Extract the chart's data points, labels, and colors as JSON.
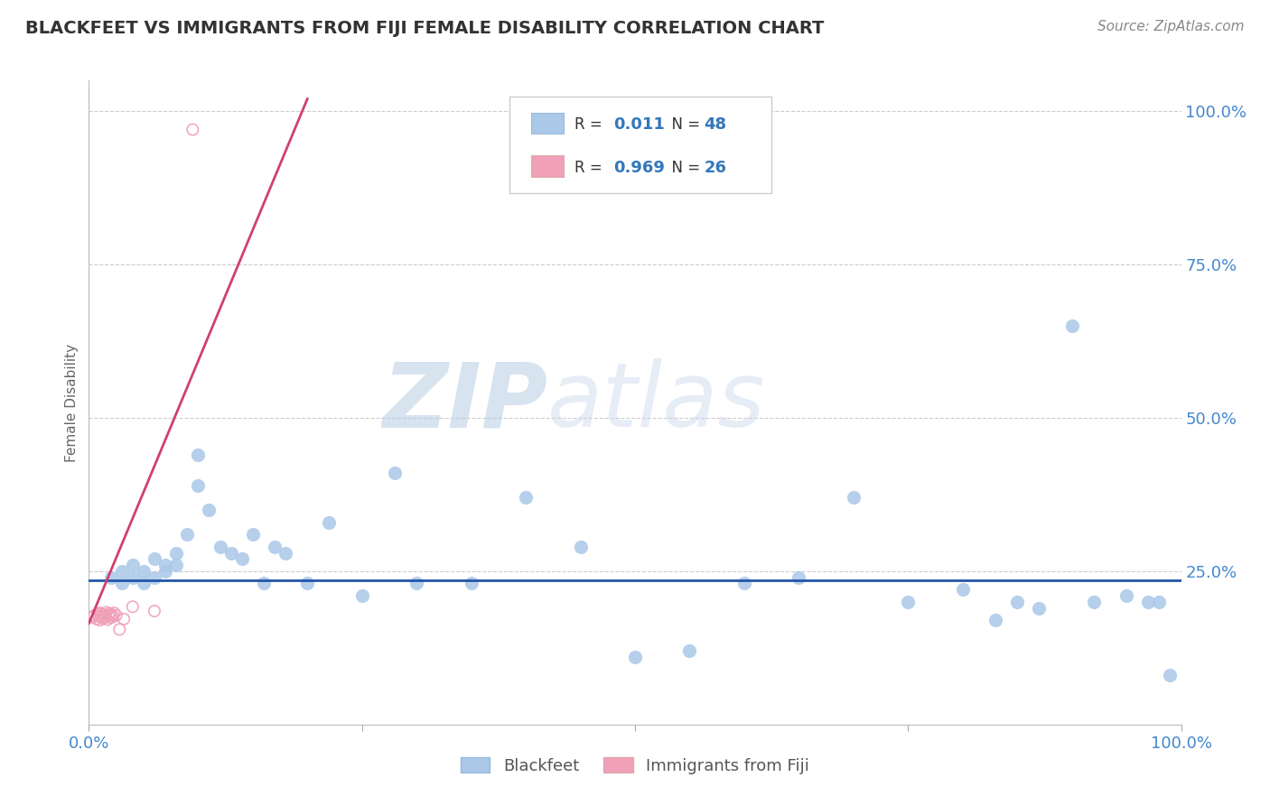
{
  "title": "BLACKFEET VS IMMIGRANTS FROM FIJI FEMALE DISABILITY CORRELATION CHART",
  "source": "Source: ZipAtlas.com",
  "ylabel": "Female Disability",
  "xlim": [
    0.0,
    1.0
  ],
  "ylim": [
    0.0,
    1.05
  ],
  "blue_R": 0.011,
  "blue_N": 48,
  "pink_R": 0.969,
  "pink_N": 26,
  "blue_color": "#aac8e8",
  "pink_color": "#f0a0b8",
  "blue_line_color": "#2255aa",
  "pink_line_color": "#d04070",
  "legend_label1": "Blackfeet",
  "legend_label2": "Immigrants from Fiji",
  "watermark_zip": "ZIP",
  "watermark_atlas": "atlas",
  "blue_dots_x": [
    0.02,
    0.03,
    0.03,
    0.04,
    0.04,
    0.05,
    0.05,
    0.06,
    0.06,
    0.07,
    0.07,
    0.08,
    0.08,
    0.09,
    0.1,
    0.1,
    0.11,
    0.12,
    0.13,
    0.14,
    0.15,
    0.16,
    0.17,
    0.18,
    0.2,
    0.22,
    0.25,
    0.28,
    0.3,
    0.35,
    0.4,
    0.45,
    0.5,
    0.55,
    0.6,
    0.65,
    0.7,
    0.75,
    0.8,
    0.83,
    0.85,
    0.87,
    0.9,
    0.92,
    0.95,
    0.97,
    0.98,
    0.99
  ],
  "blue_dots_y": [
    0.24,
    0.25,
    0.23,
    0.26,
    0.24,
    0.25,
    0.23,
    0.27,
    0.24,
    0.26,
    0.25,
    0.28,
    0.26,
    0.31,
    0.44,
    0.39,
    0.35,
    0.29,
    0.28,
    0.27,
    0.31,
    0.23,
    0.29,
    0.28,
    0.23,
    0.33,
    0.21,
    0.41,
    0.23,
    0.23,
    0.37,
    0.29,
    0.11,
    0.12,
    0.23,
    0.24,
    0.37,
    0.2,
    0.22,
    0.17,
    0.2,
    0.19,
    0.65,
    0.2,
    0.21,
    0.2,
    0.2,
    0.08
  ],
  "pink_dots_x": [
    0.003,
    0.005,
    0.007,
    0.008,
    0.009,
    0.01,
    0.01,
    0.011,
    0.012,
    0.013,
    0.014,
    0.015,
    0.016,
    0.017,
    0.018,
    0.019,
    0.02,
    0.021,
    0.022,
    0.023,
    0.025,
    0.028,
    0.032,
    0.04,
    0.06,
    0.095
  ],
  "pink_dots_y": [
    0.175,
    0.178,
    0.172,
    0.18,
    0.176,
    0.182,
    0.17,
    0.177,
    0.18,
    0.173,
    0.179,
    0.175,
    0.183,
    0.171,
    0.178,
    0.181,
    0.174,
    0.179,
    0.176,
    0.182,
    0.178,
    0.155,
    0.172,
    0.192,
    0.185,
    0.97
  ],
  "pink_line_x0": 0.0,
  "pink_line_y0": 0.165,
  "pink_line_x1": 0.2,
  "pink_line_y1": 1.02,
  "blue_line_y": 0.235
}
